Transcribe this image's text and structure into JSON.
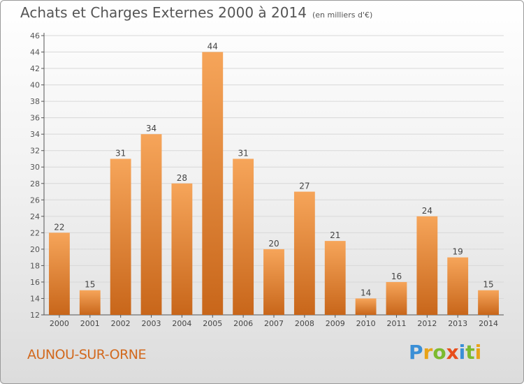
{
  "header": {
    "title": "Achats et Charges Externes 2000 à 2014",
    "subtitle": "(en milliers d'€)"
  },
  "footer": {
    "commune": "AUNOU-SUR-ORNE",
    "logo_letters": [
      "P",
      "r",
      "o",
      "x",
      "i",
      "t",
      "i"
    ],
    "logo_colors": [
      "#3a8fd6",
      "#e8a318",
      "#7cba2f",
      "#e84e1b",
      "#3a8fd6",
      "#7cba2f",
      "#e8a318"
    ]
  },
  "colors": {
    "bar_light": "#f6a55a",
    "bar_dark": "#c8661a",
    "axis": "#555555",
    "grid": "#d8d8d8"
  },
  "chart_data": {
    "type": "bar",
    "title": "Achats et Charges Externes 2000 à 2014",
    "subtitle": "(en milliers d'€)",
    "categories": [
      "2000",
      "2001",
      "2002",
      "2003",
      "2004",
      "2005",
      "2006",
      "2007",
      "2008",
      "2009",
      "2010",
      "2011",
      "2012",
      "2013",
      "2014"
    ],
    "values": [
      22,
      15,
      31,
      34,
      28,
      44,
      31,
      20,
      27,
      21,
      14,
      16,
      24,
      19,
      15
    ],
    "ylim": [
      12,
      46
    ],
    "yticks": [
      12,
      14,
      16,
      18,
      20,
      22,
      24,
      26,
      28,
      30,
      32,
      34,
      36,
      38,
      40,
      42,
      44,
      46
    ],
    "grid": true,
    "data_labels": true
  }
}
